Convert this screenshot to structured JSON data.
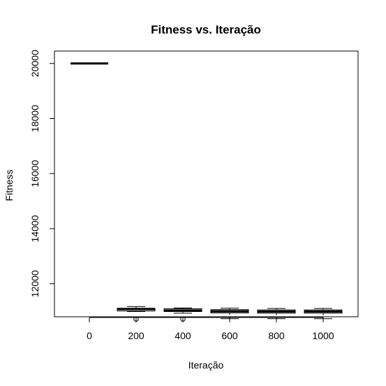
{
  "chart_data": {
    "type": "box",
    "title": "Fitness vs. Iteração",
    "xlabel": "Iteração",
    "ylabel": "Fitness",
    "categories": [
      "0",
      "200",
      "400",
      "600",
      "800",
      "1000"
    ],
    "y_ticks": [
      "12000",
      "14000",
      "16000",
      "18000",
      "20000"
    ],
    "ylim": [
      10800,
      20450
    ],
    "grid": false,
    "boxes": [
      {
        "category": "0",
        "min": 20000,
        "q1": 20000,
        "median": 20000,
        "q3": 20000,
        "max": 20000,
        "outliers": []
      },
      {
        "category": "200",
        "min": 10990,
        "q1": 11010,
        "median": 11080,
        "q3": 11110,
        "max": 11170,
        "outliers": [
          10720
        ]
      },
      {
        "category": "400",
        "min": 10930,
        "q1": 10990,
        "median": 11030,
        "q3": 11090,
        "max": 11120,
        "outliers": [
          10720
        ]
      },
      {
        "category": "600",
        "min": 10730,
        "q1": 10940,
        "median": 11000,
        "q3": 11060,
        "max": 11110,
        "outliers": []
      },
      {
        "category": "800",
        "min": 10730,
        "q1": 10930,
        "median": 10990,
        "q3": 11050,
        "max": 11100,
        "outliers": []
      },
      {
        "category": "1000",
        "min": 10730,
        "q1": 10930,
        "median": 10990,
        "q3": 11050,
        "max": 11100,
        "outliers": []
      }
    ]
  }
}
